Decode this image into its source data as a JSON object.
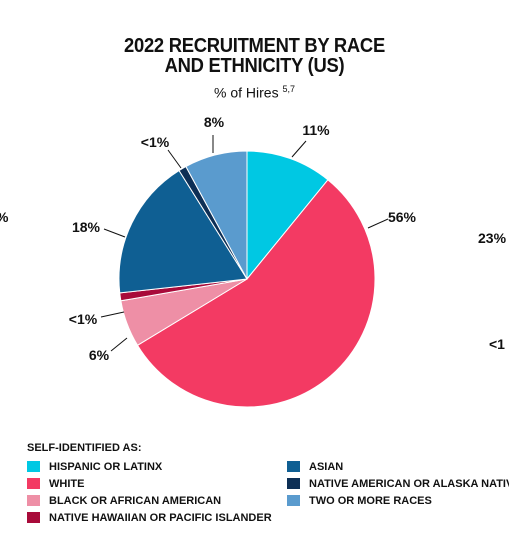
{
  "chart_data": {
    "type": "pie",
    "title_line1": "2022 RECRUITMENT BY RACE",
    "title_line2": "AND ETHNICITY (US)",
    "subtitle": "% of Hires",
    "subtitle_note": "5,7",
    "slices": [
      {
        "name": "HISPANIC OR LATINX",
        "value": 11,
        "label": "11%",
        "color": "#00c8e3"
      },
      {
        "name": "WHITE",
        "value": 56,
        "label": "56%",
        "color": "#f33a63"
      },
      {
        "name": "BLACK OR AFRICAN AMERICAN",
        "value": 6,
        "label": "6%",
        "color": "#ee8fa6"
      },
      {
        "name": "NATIVE HAWAIIAN OR PACIFIC ISLANDER",
        "value": 1,
        "label": "<1%",
        "color": "#a80b3a"
      },
      {
        "name": "ASIAN",
        "value": 18,
        "label": "18%",
        "color": "#0f5f93"
      },
      {
        "name": "NATIVE AMERICAN OR ALASKA NATIVE",
        "value": 1,
        "label": "<1%",
        "color": "#0d2f55"
      },
      {
        "name": "TWO OR MORE RACES",
        "value": 8,
        "label": "8%",
        "color": "#5a9bce"
      }
    ],
    "legend_title": "SELF-IDENTIFIED AS:",
    "neighbor_labels": [
      "%",
      "23%",
      "<1"
    ]
  }
}
